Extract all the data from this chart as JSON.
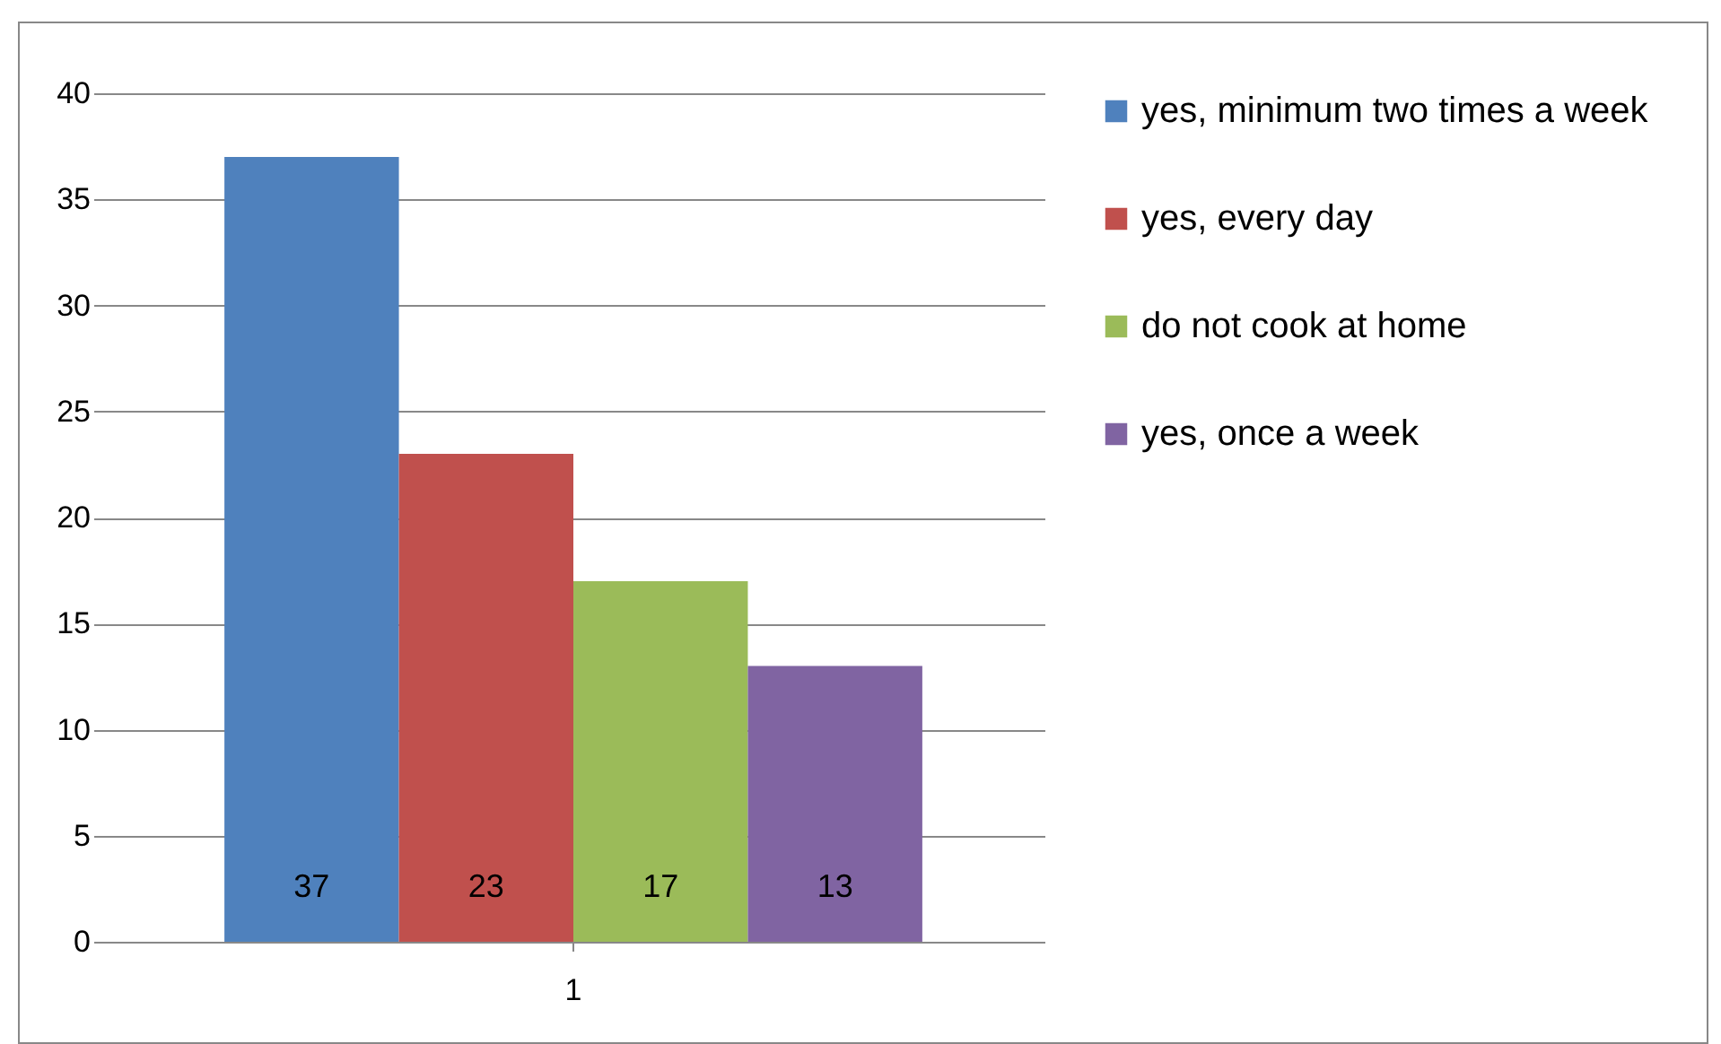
{
  "chart_data": {
    "type": "bar",
    "categories": [
      "1"
    ],
    "series": [
      {
        "name": "yes, minimum two times a week",
        "color": "#4f81bd",
        "values": [
          37
        ]
      },
      {
        "name": "yes, every day",
        "color": "#c0504d",
        "values": [
          23
        ]
      },
      {
        "name": "do not cook at home",
        "color": "#9bbb59",
        "values": [
          17
        ]
      },
      {
        "name": "yes, once a week",
        "color": "#8064a2",
        "values": [
          13
        ]
      }
    ],
    "ylim": [
      0,
      40
    ],
    "yticks": [
      0,
      5,
      10,
      15,
      20,
      25,
      30,
      35,
      40
    ],
    "grid": "y",
    "legend": "right",
    "data_labels": true
  }
}
